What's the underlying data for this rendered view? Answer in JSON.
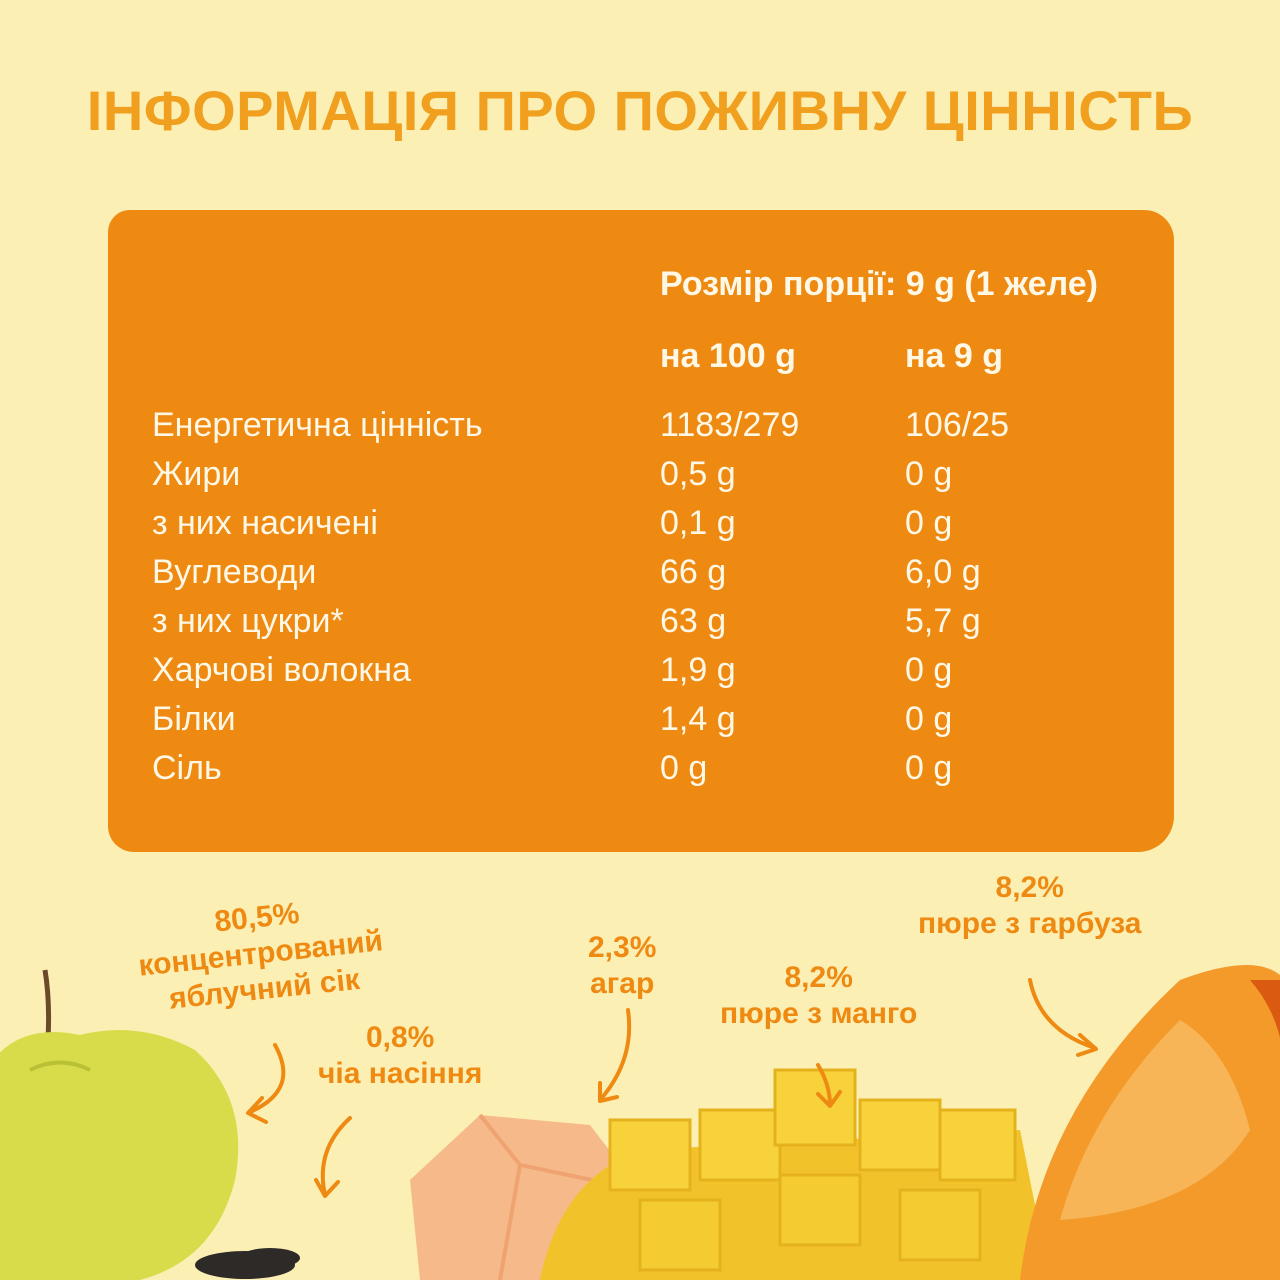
{
  "title": "ІНФОРМАЦІЯ ПРО ПОЖИВНУ ЦІННІСТЬ",
  "nutrition": {
    "serving": "Розмір порції: 9 g (1 желе)",
    "col_100": "на 100 g",
    "col_9": "на 9 g",
    "rows": [
      {
        "name": "Енергетична цінність",
        "per100": "1183/279",
        "per9": "106/25"
      },
      {
        "name": "Жири",
        "per100": "0,5 g",
        "per9": "0 g"
      },
      {
        "name": "з них насичені",
        "per100": "0,1 g",
        "per9": "0 g"
      },
      {
        "name": "Вуглеводи",
        "per100": "66 g",
        "per9": "6,0 g"
      },
      {
        "name": "з них цукри*",
        "per100": "63 g",
        "per9": "5,7 g"
      },
      {
        "name": "Харчові волокна",
        "per100": "1,9 g",
        "per9": "0 g"
      },
      {
        "name": "Білки",
        "per100": "1,4 g",
        "per9": "0 g"
      },
      {
        "name": "Сіль",
        "per100": "0 g",
        "per9": "0 g"
      }
    ]
  },
  "ingredients": {
    "apple": {
      "pct": "80,5%",
      "line1": "концентрований",
      "line2": "яблучний сік"
    },
    "chia": {
      "pct": "0,8%",
      "line1": "чіа насіння"
    },
    "agar": {
      "pct": "2,3%",
      "line1": "агар"
    },
    "mango": {
      "pct": "8,2%",
      "line1": "пюре з манго"
    },
    "pumpkin": {
      "pct": "8,2%",
      "line1": "пюре з гарбуза"
    }
  },
  "colors": {
    "background": "#FCEFB4",
    "panel": "#EE8A12",
    "accent": "#F0A01E",
    "panel_text": "#FFF8E6"
  }
}
